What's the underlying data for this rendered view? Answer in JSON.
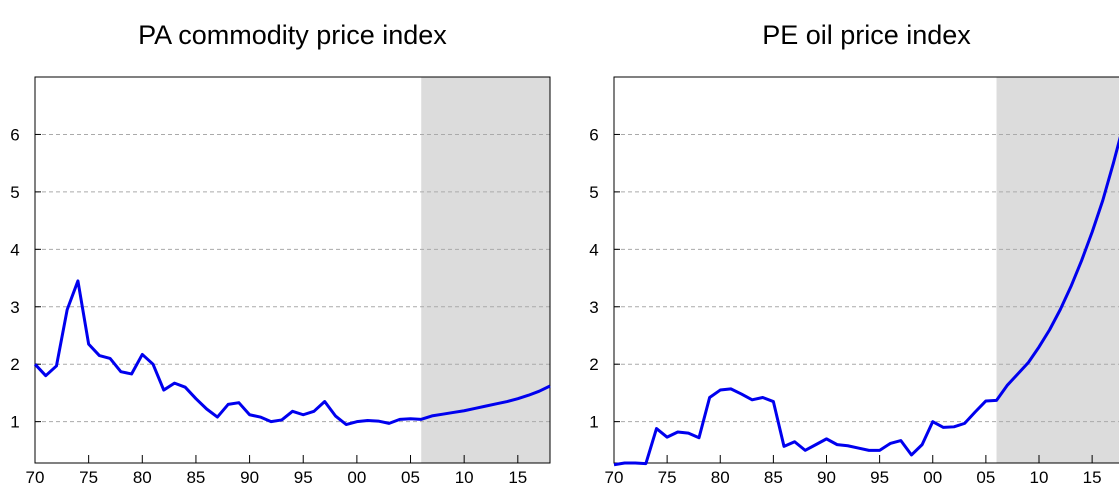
{
  "chart_data": [
    {
      "type": "line",
      "title": "PA commodity price index",
      "x": [
        1970,
        1971,
        1972,
        1973,
        1974,
        1975,
        1976,
        1977,
        1978,
        1979,
        1980,
        1981,
        1982,
        1983,
        1984,
        1985,
        1986,
        1987,
        1988,
        1989,
        1990,
        1991,
        1992,
        1993,
        1994,
        1995,
        1996,
        1997,
        1998,
        1999,
        2000,
        2001,
        2002,
        2003,
        2004,
        2005,
        2006,
        2007,
        2008,
        2009,
        2010,
        2011,
        2012,
        2013,
        2014,
        2015,
        2016,
        2017,
        2018
      ],
      "series": [
        {
          "name": "PA",
          "color": "#0000ee",
          "values": [
            2.0,
            1.8,
            1.97,
            2.95,
            3.45,
            2.35,
            2.15,
            2.1,
            1.87,
            1.83,
            2.17,
            2.0,
            1.55,
            1.67,
            1.6,
            1.4,
            1.22,
            1.08,
            1.3,
            1.33,
            1.12,
            1.08,
            1.0,
            1.03,
            1.18,
            1.12,
            1.18,
            1.35,
            1.1,
            0.95,
            1.0,
            1.02,
            1.01,
            0.97,
            1.04,
            1.05,
            1.04,
            1.1,
            1.13,
            1.16,
            1.19,
            1.23,
            1.27,
            1.31,
            1.35,
            1.4,
            1.46,
            1.53,
            1.62
          ]
        }
      ],
      "xlim": [
        1970,
        2018
      ],
      "ylim": [
        0.28,
        7.0
      ],
      "xticks": [
        {
          "value": 1970,
          "label": "70"
        },
        {
          "value": 1975,
          "label": "75"
        },
        {
          "value": 1980,
          "label": "80"
        },
        {
          "value": 1985,
          "label": "85"
        },
        {
          "value": 1990,
          "label": "90"
        },
        {
          "value": 1995,
          "label": "95"
        },
        {
          "value": 2000,
          "label": "00"
        },
        {
          "value": 2005,
          "label": "05"
        },
        {
          "value": 2010,
          "label": "10"
        },
        {
          "value": 2015,
          "label": "15"
        }
      ],
      "yticks": [
        1,
        2,
        3,
        4,
        5,
        6
      ],
      "grid": true,
      "shade": [
        2006,
        2018
      ],
      "shade_color": "#dcdcdc"
    },
    {
      "type": "line",
      "title": "PE oil price index",
      "x": [
        1970,
        1971,
        1972,
        1973,
        1974,
        1975,
        1976,
        1977,
        1978,
        1979,
        1980,
        1981,
        1982,
        1983,
        1984,
        1985,
        1986,
        1987,
        1988,
        1989,
        1990,
        1991,
        1992,
        1993,
        1994,
        1995,
        1996,
        1997,
        1998,
        1999,
        2000,
        2001,
        2002,
        2003,
        2004,
        2005,
        2006,
        2007,
        2008,
        2009,
        2010,
        2011,
        2012,
        2013,
        2014,
        2015,
        2016,
        2017,
        2018
      ],
      "series": [
        {
          "name": "PE",
          "color": "#0000ee",
          "values": [
            0.25,
            0.28,
            0.28,
            0.27,
            0.88,
            0.73,
            0.82,
            0.8,
            0.72,
            1.42,
            1.55,
            1.57,
            1.48,
            1.38,
            1.42,
            1.35,
            0.57,
            0.65,
            0.5,
            0.6,
            0.7,
            0.6,
            0.58,
            0.54,
            0.5,
            0.5,
            0.62,
            0.67,
            0.42,
            0.6,
            1.0,
            0.9,
            0.91,
            0.97,
            1.17,
            1.36,
            1.37,
            1.63,
            1.83,
            2.03,
            2.3,
            2.6,
            2.95,
            3.35,
            3.8,
            4.3,
            4.85,
            5.5,
            6.2
          ]
        }
      ],
      "xlim": [
        1970,
        2018
      ],
      "ylim": [
        0.28,
        7.0
      ],
      "xticks": [
        {
          "value": 1970,
          "label": "70"
        },
        {
          "value": 1975,
          "label": "75"
        },
        {
          "value": 1980,
          "label": "80"
        },
        {
          "value": 1985,
          "label": "85"
        },
        {
          "value": 1990,
          "label": "90"
        },
        {
          "value": 1995,
          "label": "95"
        },
        {
          "value": 2000,
          "label": "00"
        },
        {
          "value": 2005,
          "label": "05"
        },
        {
          "value": 2010,
          "label": "10"
        },
        {
          "value": 2015,
          "label": "15"
        }
      ],
      "yticks": [
        1,
        2,
        3,
        4,
        5,
        6
      ],
      "grid": true,
      "shade": [
        2006,
        2018
      ],
      "shade_color": "#dcdcdc"
    }
  ]
}
